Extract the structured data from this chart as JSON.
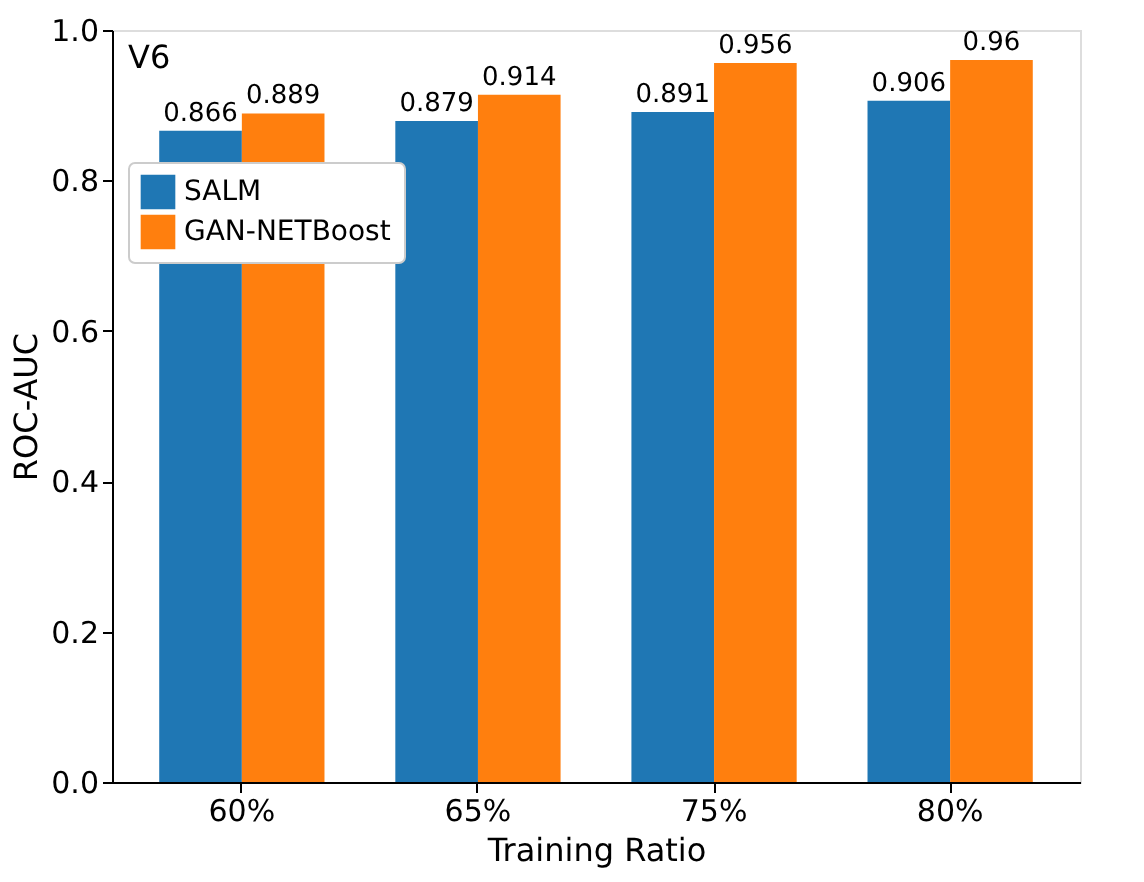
{
  "chart_data": {
    "type": "bar",
    "xlabel": "Training Ratio",
    "ylabel": "ROC-AUC",
    "annotations": [
      "V6"
    ],
    "categories": [
      "60%",
      "65%",
      "75%",
      "80%"
    ],
    "series": [
      {
        "name": "SALM",
        "color": "#1f77b4",
        "values": [
          0.866,
          0.879,
          0.891,
          0.906
        ]
      },
      {
        "name": "GAN-NETBoost",
        "color": "#ff7f0e",
        "values": [
          0.889,
          0.914,
          0.956,
          0.96
        ]
      }
    ],
    "ylim": [
      0,
      1.0
    ],
    "yticks": [
      {
        "value": 0,
        "label": "0.0"
      },
      {
        "value": 0.2,
        "label": "0.2"
      },
      {
        "value": 0.4,
        "label": "0.4"
      },
      {
        "value": 0.6,
        "label": "0.6"
      },
      {
        "value": 0.8,
        "label": "0.8"
      },
      {
        "value": 1.0,
        "label": "1.0"
      }
    ],
    "data_labels": true,
    "legend": "top left",
    "grid": false
  }
}
